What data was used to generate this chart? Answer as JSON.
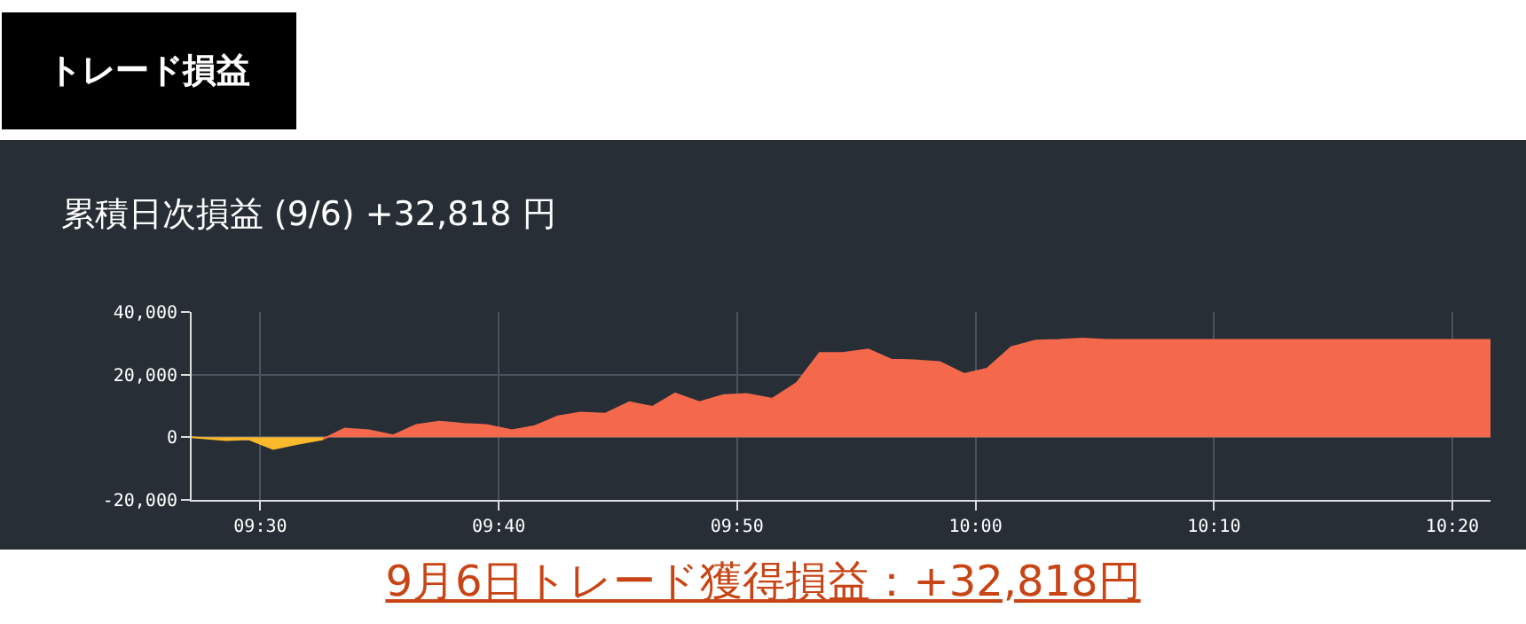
{
  "chart_data": {
    "type": "area",
    "title": "累積日次損益 (9/6) +32,818 円",
    "annotations": [
      "トレード損益",
      "9月6日トレード獲得損益：+32,818円"
    ],
    "series": [
      {
        "color": "#fbb92c",
        "x": [
          9.452,
          9.476,
          9.492,
          9.509,
          9.526,
          9.544
        ],
        "values": [
          0,
          -900,
          -600,
          -3700,
          -2100,
          -600
        ]
      },
      {
        "color": "#f4694c",
        "x": [
          9.544,
          9.559,
          9.576,
          9.593,
          9.609,
          9.625,
          9.642,
          9.658,
          9.676,
          9.692,
          9.708,
          9.724,
          9.741,
          9.758,
          9.774,
          9.79,
          9.807,
          9.824,
          9.84,
          9.858,
          9.875,
          9.891,
          9.907,
          9.925,
          9.941,
          9.957,
          9.975,
          9.992,
          10.008,
          10.025,
          10.042,
          10.058,
          10.075,
          10.092,
          10.36
        ],
        "values": [
          -600,
          2800,
          2200,
          600,
          3900,
          5000,
          4300,
          3900,
          2200,
          3600,
          6700,
          7900,
          7500,
          11200,
          9700,
          14000,
          11200,
          13500,
          13800,
          12300,
          17300,
          26900,
          26900,
          28000,
          24800,
          24600,
          24000,
          20200,
          21900,
          28800,
          30900,
          31100,
          31500,
          31100,
          31100
        ]
      }
    ],
    "xlim": [
      9.452,
      10.36
    ],
    "xticks": [
      {
        "value": 9.5,
        "label": "09:30"
      },
      {
        "value": 9.6667,
        "label": "09:40"
      },
      {
        "value": 9.8333,
        "label": "09:50"
      },
      {
        "value": 10,
        "label": "10:00"
      },
      {
        "value": 10.1667,
        "label": "10:10"
      },
      {
        "value": 10.3333,
        "label": "10:20"
      }
    ],
    "ylim": [
      -20000,
      40000
    ],
    "yticks": [
      {
        "value": -20000,
        "label": "-20,000"
      },
      {
        "value": 0,
        "label": "0"
      },
      {
        "value": 20000,
        "label": "20,000"
      },
      {
        "value": 40000,
        "label": "40,000"
      }
    ],
    "grid": true
  }
}
